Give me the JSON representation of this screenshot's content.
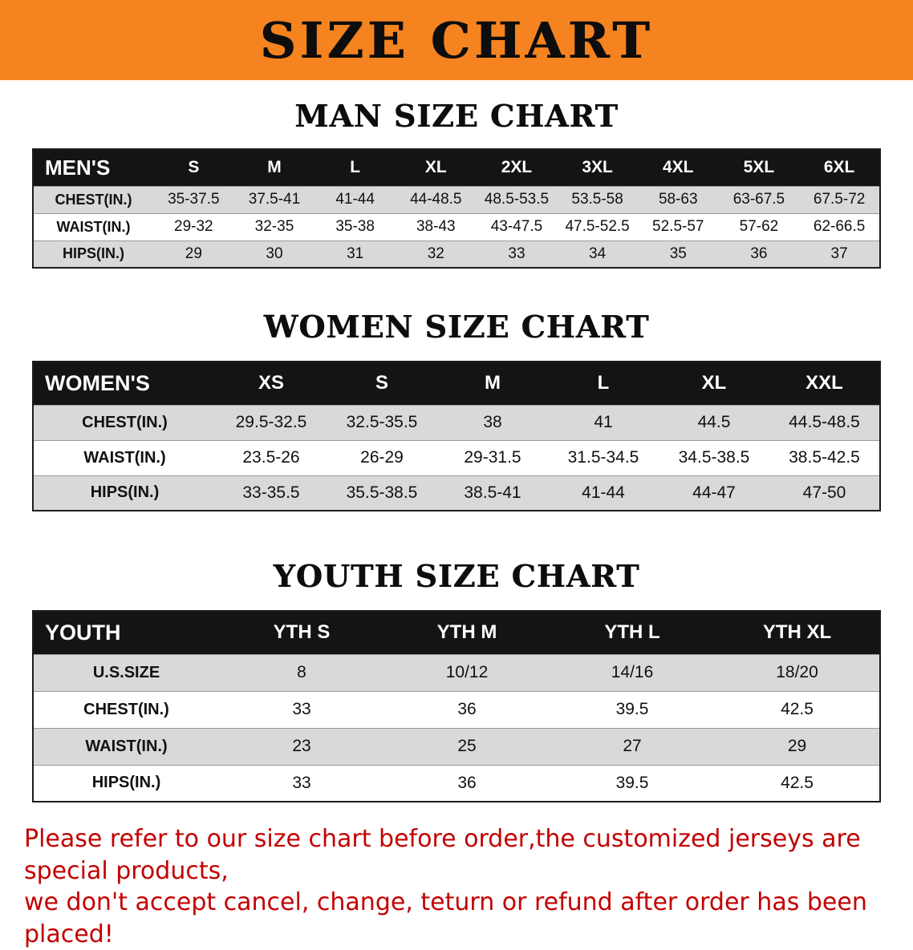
{
  "banner": {
    "title": "SIZE CHART"
  },
  "colors": {
    "banner-bg": "#f5831f",
    "header-bg": "#141414",
    "row-alt": "#d9d9d9",
    "notice-red": "#c30000"
  },
  "sections": [
    {
      "id": "man",
      "heading": "MAN SIZE CHART",
      "table": {
        "header": [
          "MEN'S",
          "S",
          "M",
          "L",
          "XL",
          "2XL",
          "3XL",
          "4XL",
          "5XL",
          "6XL"
        ],
        "rows": [
          [
            "CHEST(IN.)",
            "35-37.5",
            "37.5-41",
            "41-44",
            "44-48.5",
            "48.5-53.5",
            "53.5-58",
            "58-63",
            "63-67.5",
            "67.5-72"
          ],
          [
            "WAIST(IN.)",
            "29-32",
            "32-35",
            "35-38",
            "38-43",
            "43-47.5",
            "47.5-52.5",
            "52.5-57",
            "57-62",
            "62-66.5"
          ],
          [
            "HIPS(IN.)",
            "29",
            "30",
            "31",
            "32",
            "33",
            "34",
            "35",
            "36",
            "37"
          ]
        ]
      }
    },
    {
      "id": "women",
      "heading": "WOMEN SIZE CHART",
      "table": {
        "header": [
          "WOMEN'S",
          "XS",
          "S",
          "M",
          "L",
          "XL",
          "XXL"
        ],
        "rows": [
          [
            "CHEST(IN.)",
            "29.5-32.5",
            "32.5-35.5",
            "38",
            "41",
            "44.5",
            "44.5-48.5"
          ],
          [
            "WAIST(IN.)",
            "23.5-26",
            "26-29",
            "29-31.5",
            "31.5-34.5",
            "34.5-38.5",
            "38.5-42.5"
          ],
          [
            "HIPS(IN.)",
            "33-35.5",
            "35.5-38.5",
            "38.5-41",
            "41-44",
            "44-47",
            "47-50"
          ]
        ]
      }
    },
    {
      "id": "youth",
      "heading": "YOUTH SIZE CHART",
      "table": {
        "header": [
          "YOUTH",
          "YTH S",
          "YTH M",
          "YTH L",
          "YTH XL"
        ],
        "rows": [
          [
            "U.S.SIZE",
            "8",
            "10/12",
            "14/16",
            "18/20"
          ],
          [
            "CHEST(IN.)",
            "33",
            "36",
            "39.5",
            "42.5"
          ],
          [
            "WAIST(IN.)",
            "23",
            "25",
            "27",
            "29"
          ],
          [
            "HIPS(IN.)",
            "33",
            "36",
            "39.5",
            "42.5"
          ]
        ]
      }
    }
  ],
  "footer": {
    "line1": "Please refer to our size chart before order,the customized jerseys are special products,",
    "line2": "we don't accept cancel, change, teturn or refund after order has been placed!"
  }
}
